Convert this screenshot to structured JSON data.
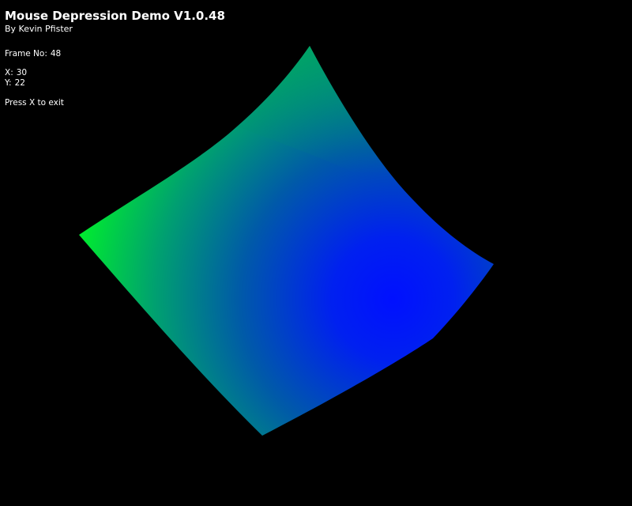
{
  "hud": {
    "title": "Mouse Depression Demo V1.0.48",
    "author": "By Kevin Pfister",
    "frame_label": "Frame No:",
    "frame_value": "48",
    "x_label": "X:",
    "x_value": "30",
    "y_label": "Y:",
    "y_value": "22",
    "exit_hint": "Press X to exit"
  },
  "scene": {
    "background_color": "#000000",
    "surface": {
      "description_color_high": "#00ff1e",
      "color_mid": "#00707a",
      "color_low": "#0010ff",
      "depression_center_color": "#0010ff"
    }
  }
}
